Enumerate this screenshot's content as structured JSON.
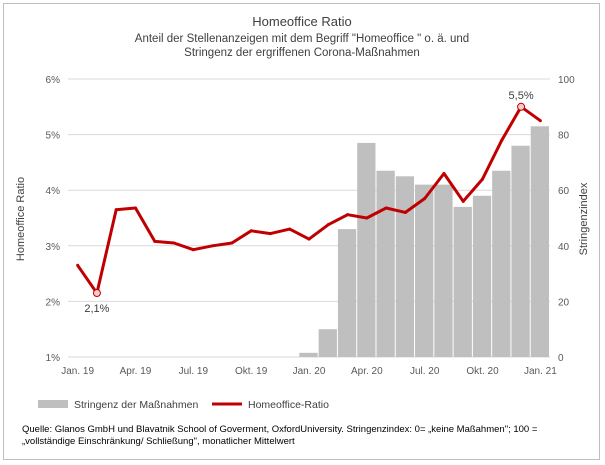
{
  "chart_data": {
    "type": "bar+line",
    "title": "Homeoffice Ratio",
    "subtitle_lines": [
      "Anteil der Stellenanzeigen mit dem Begriff \"Homeoffice \" o. ä. und",
      "Stringenz der ergriffenen Corona-Maßnahmen"
    ],
    "y_left_label": "Homeoffice Ratio",
    "y_right_label": "Stringenzindex",
    "y_left_ticks": [
      "1%",
      "2%",
      "3%",
      "4%",
      "5%",
      "6%"
    ],
    "y_left_range": [
      1,
      6
    ],
    "y_right_ticks": [
      "0",
      "20",
      "40",
      "60",
      "80",
      "100"
    ],
    "y_right_range": [
      0,
      100
    ],
    "x_tick_labels": [
      {
        "index": 0,
        "label": "Jan. 19"
      },
      {
        "index": 3,
        "label": "Apr. 19"
      },
      {
        "index": 6,
        "label": "Jul. 19"
      },
      {
        "index": 9,
        "label": "Okt. 19"
      },
      {
        "index": 12,
        "label": "Jan. 20"
      },
      {
        "index": 15,
        "label": "Apr. 20"
      },
      {
        "index": 18,
        "label": "Jul. 20"
      },
      {
        "index": 21,
        "label": "Okt. 20"
      },
      {
        "index": 24,
        "label": "Jan. 21"
      }
    ],
    "n_months": 25,
    "bars": {
      "name": "Stringenz der Maßnahmen",
      "color": "#bfbfbf",
      "values": [
        0,
        0,
        0,
        0,
        0,
        0,
        0,
        0,
        0,
        0,
        0,
        0,
        1.5,
        10,
        46,
        77,
        67,
        65,
        62,
        62,
        54,
        58,
        67,
        76,
        83
      ]
    },
    "line": {
      "name": "Homeoffice-Ratio",
      "color": "#c00000",
      "values": [
        2.65,
        2.15,
        3.65,
        3.68,
        3.08,
        3.05,
        2.93,
        3.0,
        3.05,
        3.27,
        3.22,
        3.3,
        3.12,
        3.38,
        3.56,
        3.5,
        3.68,
        3.6,
        3.85,
        4.3,
        3.8,
        4.2,
        4.9,
        5.5,
        5.25
      ]
    },
    "annotations": [
      {
        "index": 1,
        "label": "2,1%"
      },
      {
        "index": 23,
        "label": "5,5%"
      }
    ],
    "legend_position": "bottom",
    "grid": "horizontal"
  },
  "source_line1": "Quelle: Glanos GmbH und Blavatnik School of Goverment, OxfordUniversity. Stringenzindex: 0=  „keine Maßahmen\"; 100 =",
  "source_line2": "„vollständige Einschränkung/ Schließung\", monatlicher Mittelwert"
}
